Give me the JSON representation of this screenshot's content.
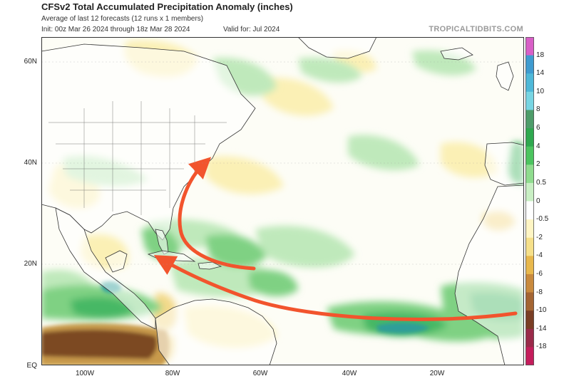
{
  "header": {
    "title": "CFSv2 Total Accumulated Precipitation Anomaly (inches)",
    "subtitle": "Average of last 12 forecasts (12 runs x 1 members)",
    "init": "Init: 00z Mar 26 2024 through 18z Mar 28 2024",
    "valid": "Valid for: Jul 2024",
    "brand": "TROPICALTIDBITS.COM"
  },
  "map": {
    "lat_labels": [
      "60N",
      "40N",
      "20N",
      "EQ"
    ],
    "lon_labels": [
      "100W",
      "80W",
      "60W",
      "40W",
      "20W"
    ],
    "colors": {
      "ocean_base": "#fdfdf6",
      "land": "#ffffff",
      "wet_light": "#bfe9bb",
      "wet": "#7fd183",
      "wet_strong": "#46b865",
      "wet_heavy": "#2f9e9a",
      "dry_light": "#fbf0b5",
      "dry": "#f3d98a",
      "dry_strong": "#c89a4c",
      "dry_extreme": "#7b4a20",
      "arrow": "#f2542d"
    }
  },
  "colorbar": {
    "labels": [
      "18",
      "14",
      "10",
      "8",
      "6",
      "4",
      "2",
      "0.5",
      "0",
      "-0.5",
      "-2",
      "-4",
      "-6",
      "-8",
      "-10",
      "-14",
      "-18"
    ],
    "colors": [
      "#d85fc7",
      "#3f9bd0",
      "#4fb8d8",
      "#78d5e3",
      "#4e9c6a",
      "#2fa84f",
      "#4cc45f",
      "#8fdc8e",
      "#c9efc4",
      "#ffffff",
      "#fff5c4",
      "#f6e08a",
      "#e8b84d",
      "#c98a3e",
      "#a46533",
      "#7a3e25",
      "#9a2a4a",
      "#c41d5c"
    ]
  }
}
